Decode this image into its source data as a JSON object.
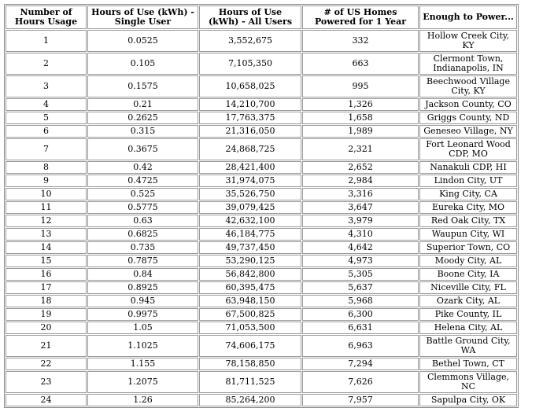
{
  "table": {
    "header": [
      "Number of Hours Usage",
      "Hours of Use (kWh) - Single User",
      "Hours of Use (kWh) - All Users",
      "# of US Homes Powered for 1 Year",
      "Enough to Power..."
    ],
    "rows": [
      [
        "1",
        "0.0525",
        "3,552,675",
        "332",
        "Hollow Creek City, KY"
      ],
      [
        "2",
        "0.105",
        "7,105,350",
        "663",
        "Clermont Town, Indianapolis, IN"
      ],
      [
        "3",
        "0.1575",
        "10,658,025",
        "995",
        "Beechwood Village City, KY"
      ],
      [
        "4",
        "0.21",
        "14,210,700",
        "1,326",
        "Jackson County, CO"
      ],
      [
        "5",
        "0.2625",
        "17,763,375",
        "1,658",
        "Griggs County, ND"
      ],
      [
        "6",
        "0.315",
        "21,316,050",
        "1,989",
        "Geneseo Village, NY"
      ],
      [
        "7",
        "0.3675",
        "24,868,725",
        "2,321",
        "Fort Leonard Wood CDP, MO"
      ],
      [
        "8",
        "0.42",
        "28,421,400",
        "2,652",
        "Nanakuli CDP, HI"
      ],
      [
        "9",
        "0.4725",
        "31,974,075",
        "2,984",
        "Lindon City, UT"
      ],
      [
        "10",
        "0.525",
        "35,526,750",
        "3,316",
        "King City, CA"
      ],
      [
        "11",
        "0.5775",
        "39,079,425",
        "3,647",
        "Eureka City, MO"
      ],
      [
        "12",
        "0.63",
        "42,632,100",
        "3,979",
        "Red Oak City, TX"
      ],
      [
        "13",
        "0.6825",
        "46,184,775",
        "4,310",
        "Waupun City, WI"
      ],
      [
        "14",
        "0.735",
        "49,737,450",
        "4,642",
        "Superior Town, CO"
      ],
      [
        "15",
        "0.7875",
        "53,290,125",
        "4,973",
        "Moody City, AL"
      ],
      [
        "16",
        "0.84",
        "56,842,800",
        "5,305",
        "Boone City, IA"
      ],
      [
        "17",
        "0.8925",
        "60,395,475",
        "5,637",
        "Niceville City, FL"
      ],
      [
        "18",
        "0.945",
        "63,948,150",
        "5,968",
        "Ozark City, AL"
      ],
      [
        "19",
        "0.9975",
        "67,500,825",
        "6,300",
        "Pike County, IL"
      ],
      [
        "20",
        "1.05",
        "71,053,500",
        "6,631",
        "Helena City, AL"
      ],
      [
        "21",
        "1.1025",
        "74,606,175",
        "6,963",
        "Battle Ground City, WA"
      ],
      [
        "22",
        "1.155",
        "78,158,850",
        "7,294",
        "Bethel Town, CT"
      ],
      [
        "23",
        "1.2075",
        "81,711,525",
        "7,626",
        "Clemmons Village, NC"
      ],
      [
        "24",
        "1.26",
        "85,264,200",
        "7,957",
        "Sapulpa City, OK"
      ]
    ]
  }
}
